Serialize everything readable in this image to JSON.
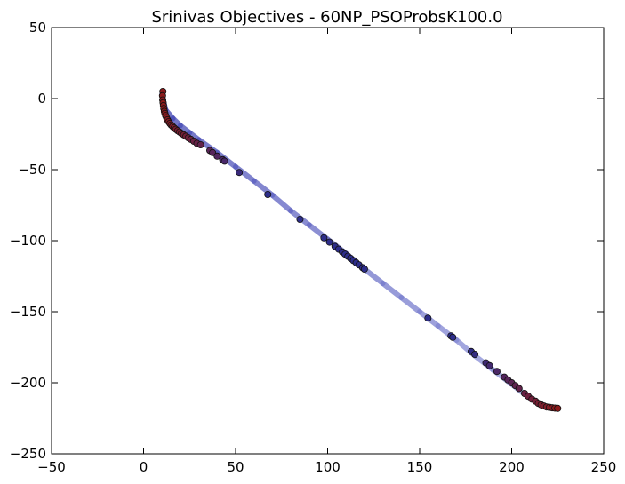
{
  "chart_data": {
    "type": "scatter",
    "title": "Srinivas Objectives - 60NP_PSOProbsK100.0",
    "xlabel": "",
    "ylabel": "",
    "xlim": [
      -50,
      250
    ],
    "ylim": [
      -250,
      50
    ],
    "xticks": [
      -50,
      0,
      50,
      100,
      150,
      200,
      250
    ],
    "yticks": [
      50,
      0,
      -50,
      -100,
      -150,
      -200,
      -250
    ],
    "grid": false,
    "legend": "none",
    "reference_line": {
      "x": [
        10,
        12,
        16,
        20,
        25,
        30,
        40,
        50,
        60,
        70,
        80,
        90,
        100,
        110,
        120,
        130,
        140,
        150,
        160,
        170,
        180,
        190,
        200,
        208,
        214,
        218,
        222,
        225
      ],
      "y": [
        3,
        -8,
        -14,
        -19,
        -24,
        -29,
        -38,
        -48,
        -58,
        -68,
        -79,
        -89,
        -99,
        -109,
        -120,
        -130,
        -140,
        -150,
        -160,
        -170,
        -181,
        -191,
        -201,
        -209,
        -214,
        -217,
        -218,
        -218
      ],
      "color_start": "#3b3fb0",
      "color_end": "#9ea3e0"
    },
    "series": [
      {
        "color_start": "#8b1a1a",
        "color_end": "#2d2d8a",
        "x": [
          10.5,
          10.3,
          10.4,
          10.6,
          10.8,
          11.0,
          11.3,
          11.6,
          12.0,
          12.5,
          13.0,
          13.6,
          14.3,
          15.0,
          15.8,
          16.6,
          17.5,
          18.5,
          19.5,
          20.6,
          21.8,
          23.0,
          24.3,
          25.7,
          27.3,
          29.0,
          31.0,
          36.0,
          37.5,
          40.0,
          43.0,
          44.0,
          52.0,
          67.5,
          85.0,
          98.0,
          101.0,
          104.0,
          106.0,
          108.0,
          109.5,
          111.0,
          112.5,
          114.0,
          115.5,
          117.0,
          119.0,
          120.0,
          154.5,
          167.0,
          168.0,
          178.0,
          180.0,
          186.0,
          188.0,
          192.0,
          196.0,
          198.0,
          200.0,
          202.0,
          204.0,
          207.0,
          209.0,
          211.0,
          213.0,
          214.5,
          216.0,
          217.5,
          219.0,
          220.5,
          222.0,
          223.5,
          225.0
        ],
        "y": [
          5,
          2,
          -1,
          -3,
          -5,
          -7,
          -9,
          -10.5,
          -12,
          -13.5,
          -15,
          -16.3,
          -17.5,
          -18.6,
          -19.6,
          -20.6,
          -21.6,
          -22.6,
          -23.5,
          -24.5,
          -25.5,
          -26.5,
          -27.6,
          -28.7,
          -30.0,
          -31.5,
          -32.5,
          -36.5,
          -38.0,
          -40.5,
          -43.0,
          -44.0,
          -52.0,
          -67.5,
          -85.0,
          -98.0,
          -101.0,
          -104.0,
          -106.0,
          -108.0,
          -109.5,
          -111.0,
          -112.5,
          -114.0,
          -115.5,
          -117.0,
          -119.0,
          -120.0,
          -154.5,
          -167.0,
          -168.0,
          -178.0,
          -180.0,
          -186.0,
          -188.0,
          -192.0,
          -196.0,
          -198.0,
          -200.0,
          -202.0,
          -204.0,
          -207.5,
          -209.5,
          -211.5,
          -213.0,
          -214.5,
          -215.5,
          -216.3,
          -217.0,
          -217.3,
          -217.6,
          -217.8,
          -218.0
        ]
      }
    ]
  }
}
